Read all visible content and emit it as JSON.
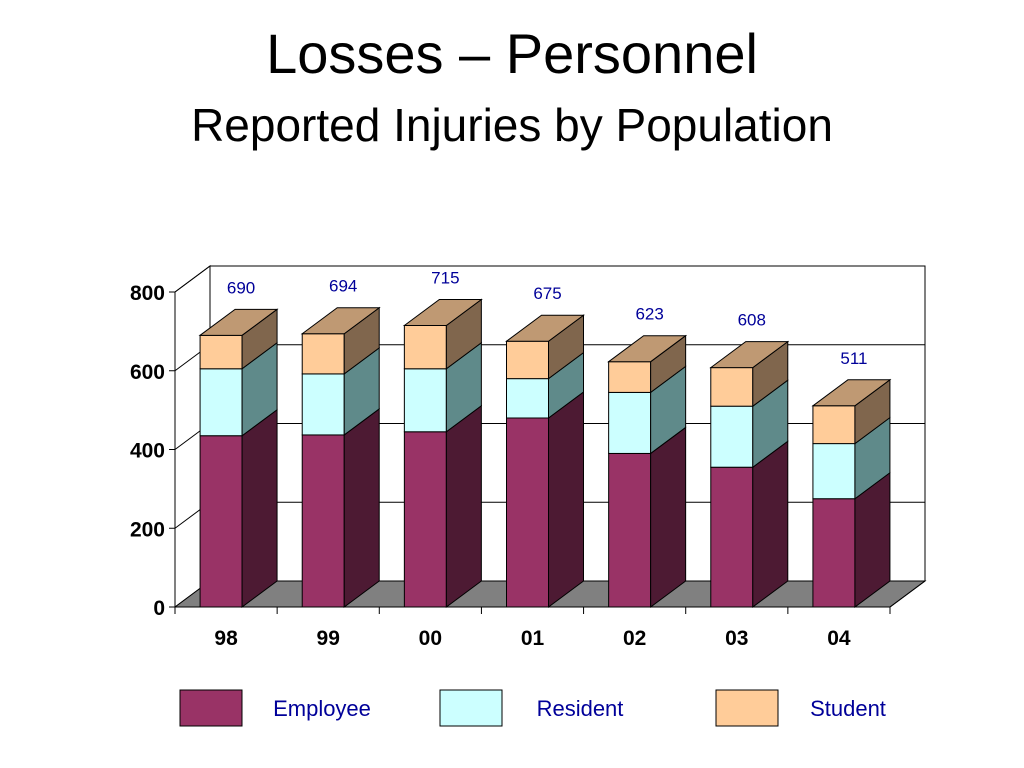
{
  "page": {
    "title": "Losses – Personnel",
    "subtitle": "Reported Injuries by Population"
  },
  "chart_data": {
    "type": "bar",
    "stacked": true,
    "style": "3d",
    "title": "Losses – Personnel",
    "subtitle": "Reported Injuries by Population",
    "xlabel": "",
    "ylabel": "",
    "categories": [
      "98",
      "99",
      "00",
      "01",
      "02",
      "03",
      "04"
    ],
    "series": [
      {
        "name": "Employee",
        "color": "#993366",
        "values": [
          435,
          437,
          445,
          480,
          390,
          355,
          275
        ]
      },
      {
        "name": "Resident",
        "color": "#CCFFFF",
        "values": [
          170,
          155,
          160,
          100,
          155,
          155,
          140
        ]
      },
      {
        "name": "Student",
        "color": "#FFCC99",
        "values": [
          85,
          102,
          110,
          95,
          78,
          98,
          96
        ]
      }
    ],
    "totals": [
      690,
      694,
      715,
      675,
      623,
      608,
      511
    ],
    "ylim": [
      0,
      800
    ],
    "yticks": [
      0,
      200,
      400,
      600,
      800
    ],
    "grid": true,
    "legend": "bottom"
  }
}
